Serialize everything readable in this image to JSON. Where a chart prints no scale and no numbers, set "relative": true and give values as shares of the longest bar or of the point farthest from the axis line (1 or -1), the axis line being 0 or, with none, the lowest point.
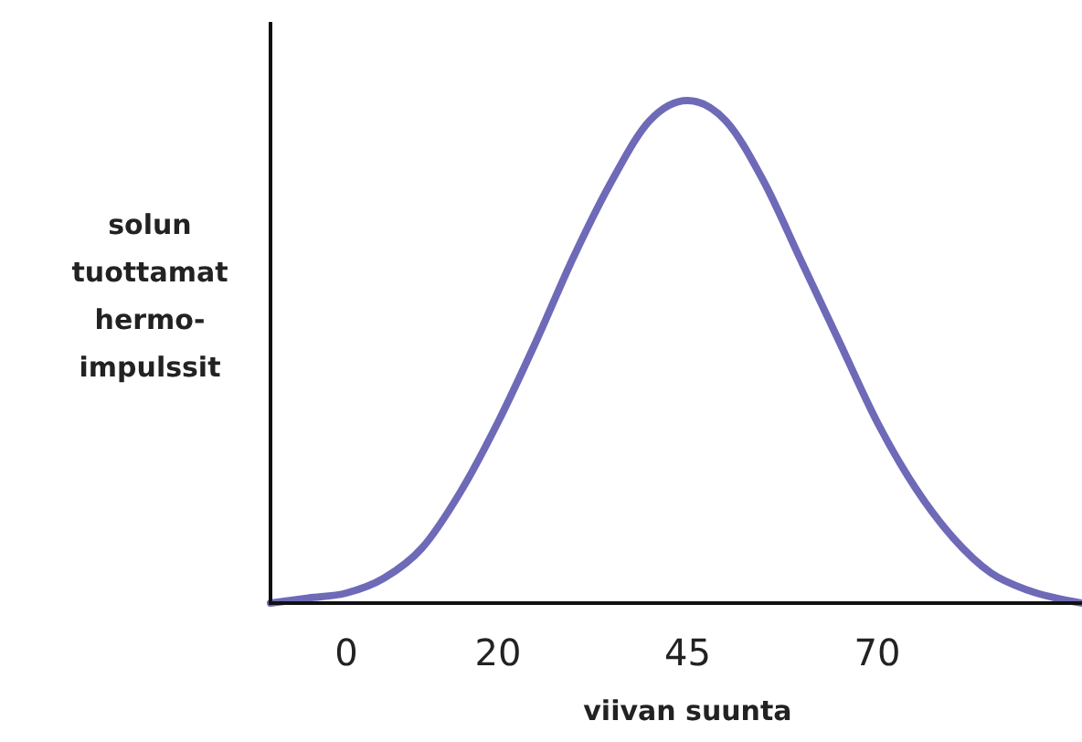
{
  "chart_data": {
    "type": "line",
    "relative": true,
    "xlabel": "viivan suunta",
    "ylabel": "solun\ntuottamat\nhermo-\nimpulssit",
    "x": [
      -10,
      -5,
      0,
      5,
      10,
      15,
      20,
      25,
      30,
      35,
      40,
      45,
      50,
      55,
      60,
      65,
      70,
      75,
      80,
      85,
      90,
      97
    ],
    "xlim": [
      -10,
      97
    ],
    "xticks": [
      0,
      20,
      45,
      70
    ],
    "series": [
      {
        "color": "#6e6ab8",
        "values": [
          0,
          0.01,
          0.02,
          0.05,
          0.11,
          0.22,
          0.36,
          0.52,
          0.69,
          0.84,
          0.96,
          1,
          0.96,
          0.84,
          0.68,
          0.52,
          0.36,
          0.23,
          0.13,
          0.06,
          0.025,
          0
        ]
      }
    ],
    "grid": false,
    "marker": "none",
    "line_style": "solid"
  }
}
